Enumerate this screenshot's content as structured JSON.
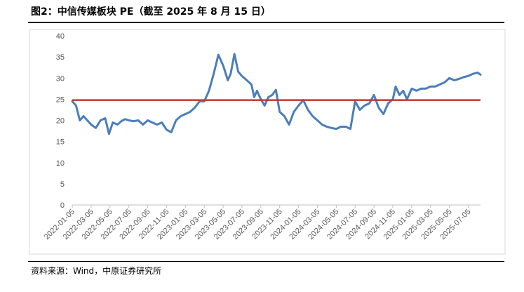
{
  "header": {
    "title": "图2：中信传媒板块 PE（截至 2025 年 8 月 15 日）"
  },
  "footer": {
    "source": "资料来源：Wind，中原证券研究所"
  },
  "colors": {
    "series": "#4A7EBB",
    "reference": "#C0392B",
    "axis": "#BFBFBF",
    "tick_text": "#595959"
  },
  "chart_data": {
    "type": "line",
    "title": "中信传媒板块 PE",
    "xlabel": "",
    "ylabel": "",
    "ylim": [
      0,
      40
    ],
    "yticks": [
      0,
      5,
      10,
      15,
      20,
      25,
      30,
      35,
      40
    ],
    "grid": false,
    "x_tick_labels": [
      "2022-01-05",
      "2022-03-05",
      "2022-05-05",
      "2022-07-05",
      "2022-09-05",
      "2022-11-05",
      "2023-01-05",
      "2023-03-05",
      "2023-05-05",
      "2023-07-05",
      "2023-09-05",
      "2023-11-05",
      "2024-01-05",
      "2024-03-05",
      "2024-05-05",
      "2024-07-05",
      "2024-09-05",
      "2024-11-05",
      "2025-01-05",
      "2025-03-05",
      "2025-05-05",
      "2025-07-05"
    ],
    "x_range_months": [
      0,
      43.3
    ],
    "reference_line": {
      "value": 24.8
    },
    "series": [
      {
        "name": "PE",
        "x_months": [
          0,
          0.4,
          0.8,
          1.2,
          1.6,
          2.0,
          2.5,
          3.0,
          3.5,
          3.9,
          4.3,
          4.8,
          5.2,
          5.6,
          6.0,
          6.5,
          7.0,
          7.5,
          8.0,
          8.5,
          9.0,
          9.5,
          10.0,
          10.5,
          11.0,
          11.5,
          12.0,
          12.5,
          13.0,
          13.5,
          14.0,
          14.5,
          15.0,
          15.5,
          16.0,
          16.5,
          16.8,
          17.2,
          17.6,
          18.0,
          18.5,
          19.0,
          19.3,
          19.6,
          20.0,
          20.4,
          20.8,
          21.2,
          21.6,
          22.0,
          22.5,
          23.0,
          23.5,
          24.0,
          24.5,
          25.0,
          25.5,
          26.0,
          26.5,
          27.0,
          27.5,
          28.0,
          28.5,
          29.0,
          29.5,
          30.0,
          30.5,
          31.0,
          31.5,
          32.0,
          32.5,
          33.0,
          33.5,
          34.0,
          34.3,
          34.7,
          35.1,
          35.5,
          36.0,
          36.5,
          37.0,
          37.5,
          38.0,
          38.5,
          39.0,
          39.5,
          40.0,
          40.5,
          41.0,
          41.5,
          42.0,
          42.5,
          43.0,
          43.3
        ],
        "values": [
          24.5,
          23.5,
          20.0,
          21.0,
          20.0,
          19.0,
          18.2,
          20.0,
          20.5,
          16.8,
          19.5,
          19.0,
          19.8,
          20.3,
          20.0,
          19.8,
          20.0,
          19.0,
          20.0,
          19.5,
          19.0,
          19.5,
          17.8,
          17.2,
          20.0,
          21.0,
          21.5,
          22.0,
          23.0,
          24.5,
          24.5,
          27.0,
          31.0,
          35.5,
          33.0,
          29.5,
          31.0,
          35.7,
          31.5,
          30.5,
          29.5,
          28.5,
          25.5,
          27.0,
          25.0,
          23.5,
          25.5,
          26.0,
          27.2,
          22.0,
          21.0,
          19.0,
          22.0,
          23.5,
          24.8,
          22.5,
          21.0,
          20.0,
          19.0,
          18.5,
          18.2,
          18.0,
          18.5,
          18.5,
          18.0,
          24.5,
          22.5,
          23.5,
          24.0,
          26.0,
          23.0,
          21.5,
          24.0,
          25.0,
          28.0,
          26.0,
          27.0,
          25.0,
          27.5,
          27.0,
          27.5,
          27.5,
          28.0,
          28.0,
          28.5,
          29.0,
          30.0,
          29.5,
          29.8,
          30.2,
          30.5,
          31.0,
          31.3,
          30.8
        ]
      }
    ]
  }
}
